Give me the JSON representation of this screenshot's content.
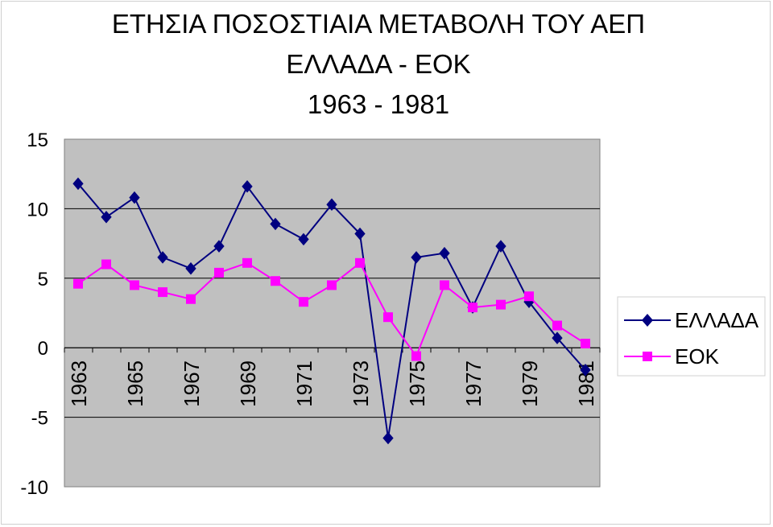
{
  "chart_data": {
    "type": "line",
    "title_lines": [
      "ΕΤΗΣΙΑ ΠΟΣΟΣΤΙΑΙΑ ΜΕΤΑΒΟΛΗ ΤΟΥ ΑΕΠ",
      "ΕΛΛΑΔΑ - ΕΟΚ",
      "1963 - 1981"
    ],
    "x": [
      "1963",
      "1964",
      "1965",
      "1966",
      "1967",
      "1968",
      "1969",
      "1970",
      "1971",
      "1972",
      "1973",
      "1974",
      "1975",
      "1976",
      "1977",
      "1978",
      "1979",
      "1980",
      "1981"
    ],
    "tick_labels": [
      "1963",
      "1965",
      "1967",
      "1969",
      "1971",
      "1973",
      "1975",
      "1977",
      "1979",
      "1981"
    ],
    "y_ticks": [
      15,
      10,
      5,
      0,
      -5,
      -10
    ],
    "ylim": [
      -10,
      15
    ],
    "grid": true,
    "legend_position": "right",
    "series": [
      {
        "name": "ΕΛΛΑΔΑ",
        "color": "#000080",
        "marker": "diamond",
        "values": [
          11.8,
          9.4,
          10.8,
          6.5,
          5.7,
          7.3,
          11.6,
          8.9,
          7.8,
          10.3,
          8.2,
          -6.5,
          6.5,
          6.8,
          2.9,
          7.3,
          3.3,
          0.7,
          -1.6
        ]
      },
      {
        "name": "ΕΟΚ",
        "color": "#ff00ff",
        "marker": "square",
        "values": [
          4.6,
          6.0,
          4.5,
          4.0,
          3.5,
          5.4,
          6.1,
          4.8,
          3.3,
          4.5,
          6.1,
          2.2,
          -0.6,
          4.5,
          2.9,
          3.1,
          3.7,
          1.6,
          0.3
        ]
      }
    ]
  }
}
